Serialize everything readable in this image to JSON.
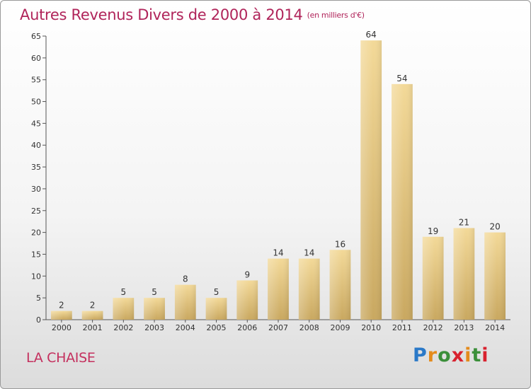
{
  "header": {
    "title": "Autres Revenus Divers de 2000 à 2014",
    "subtitle": "(en milliers d'€)"
  },
  "footer": {
    "location": "LA CHAISE",
    "logo_letters": [
      "P",
      "r",
      "o",
      "x",
      "i",
      "t",
      "i"
    ]
  },
  "colors": {
    "title": "#b0245a",
    "bar_light": "#f3d998",
    "bar_dark": "#c9a860"
  },
  "chart_data": {
    "type": "bar",
    "title": "Autres Revenus Divers de 2000 à 2014",
    "subtitle": "(en milliers d'€)",
    "xlabel": "",
    "ylabel": "",
    "categories": [
      "2000",
      "2001",
      "2002",
      "2003",
      "2004",
      "2005",
      "2006",
      "2007",
      "2008",
      "2009",
      "2010",
      "2011",
      "2012",
      "2013",
      "2014"
    ],
    "values": [
      2,
      2,
      5,
      5,
      8,
      5,
      9,
      14,
      14,
      16,
      64,
      54,
      19,
      21,
      20
    ],
    "ylim": [
      0,
      65
    ],
    "yticks": [
      0,
      5,
      10,
      15,
      20,
      25,
      30,
      35,
      40,
      45,
      50,
      55,
      60,
      65
    ],
    "grid": false,
    "legend": "none"
  }
}
